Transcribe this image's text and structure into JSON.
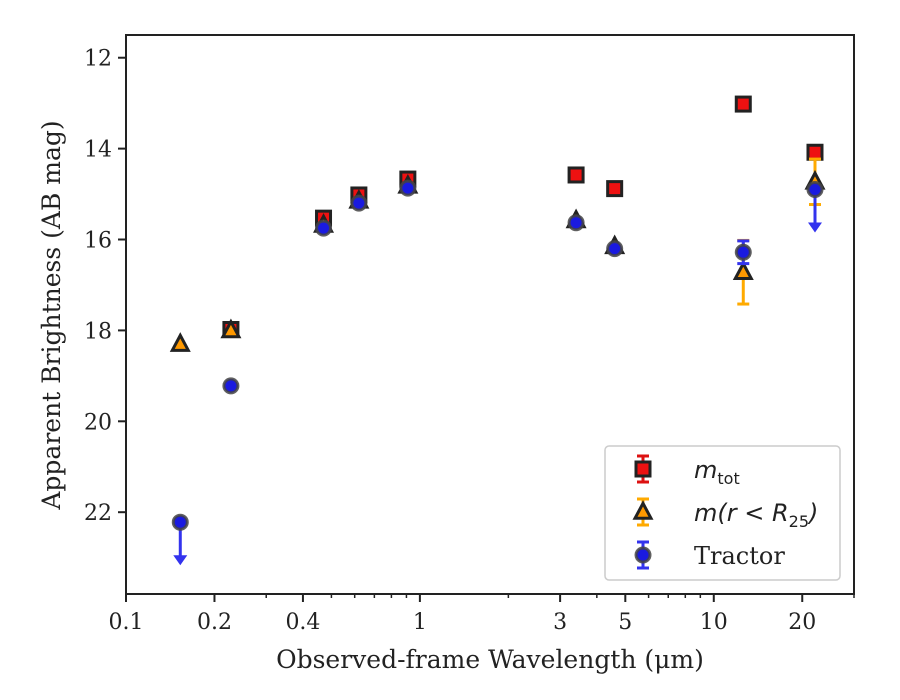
{
  "chart_data": {
    "type": "scatter",
    "title": "",
    "xlabel": "Observed-frame Wavelength (μm)",
    "ylabel": "Apparent Brightness (AB mag)",
    "xscale": "log",
    "xlim": [
      0.1,
      30
    ],
    "ylim": [
      23.8,
      11.5
    ],
    "y_inverted": true,
    "grid": false,
    "legend_position": "lower-right",
    "xticks": [
      {
        "value": 0.1,
        "label": "0.1"
      },
      {
        "value": 0.2,
        "label": "0.2"
      },
      {
        "value": 0.4,
        "label": "0.4"
      },
      {
        "value": 1,
        "label": "1"
      },
      {
        "value": 3,
        "label": "3"
      },
      {
        "value": 5,
        "label": "5"
      },
      {
        "value": 10,
        "label": "10"
      },
      {
        "value": 20,
        "label": "20"
      }
    ],
    "yticks": [
      {
        "value": 12,
        "label": "12"
      },
      {
        "value": 14,
        "label": "14"
      },
      {
        "value": 16,
        "label": "16"
      },
      {
        "value": 18,
        "label": "18"
      },
      {
        "value": 20,
        "label": "20"
      },
      {
        "value": 22,
        "label": "22"
      }
    ],
    "series": [
      {
        "name": "m_tot",
        "legend_main": "m",
        "legend_sub": "tot",
        "marker": "square",
        "fill_color": "#ee1111",
        "edge_color": "#222222",
        "error_color": "#dd1111",
        "points": [
          {
            "x": 0.2275,
            "y": 17.98,
            "err": 0.08
          },
          {
            "x": 0.47,
            "y": 15.53,
            "err": 0.08
          },
          {
            "x": 0.62,
            "y": 15.02,
            "err": 0.08
          },
          {
            "x": 0.91,
            "y": 14.67,
            "err": 0.08
          },
          {
            "x": 3.4,
            "y": 14.58,
            "err": 0.05
          },
          {
            "x": 4.6,
            "y": 14.88,
            "err": 0.05
          },
          {
            "x": 12.6,
            "y": 13.02,
            "err": 0.05
          },
          {
            "x": 22.1,
            "y": 14.08,
            "err": 0.05
          }
        ]
      },
      {
        "name": "m(r < R_25)",
        "legend_main": "m(r < R",
        "legend_sub": "25",
        "legend_tail": ")",
        "marker": "triangle",
        "fill_color": "#ff9900",
        "edge_color": "#222222",
        "error_color": "#ffaa00",
        "points": [
          {
            "x": 0.153,
            "y": 18.3,
            "err": 0.05
          },
          {
            "x": 0.2275,
            "y": 18.0,
            "err": 0.05
          },
          {
            "x": 0.47,
            "y": 15.68,
            "err": 0.05
          },
          {
            "x": 0.62,
            "y": 15.15,
            "err": 0.05
          },
          {
            "x": 0.91,
            "y": 14.82,
            "err": 0.05
          },
          {
            "x": 3.4,
            "y": 15.58,
            "err": 0.05
          },
          {
            "x": 4.6,
            "y": 16.15,
            "err": 0.05
          },
          {
            "x": 12.6,
            "y": 16.72,
            "err": 0.7
          },
          {
            "x": 22.1,
            "y": 14.73,
            "err": 0.5
          }
        ]
      },
      {
        "name": "Tractor",
        "legend_main": "Tractor",
        "marker": "circle",
        "fill_color": "#1a1ae0",
        "edge_color": "#444444",
        "error_color": "#3333ee",
        "points": [
          {
            "x": 0.153,
            "y": 22.22,
            "upper_limit": true
          },
          {
            "x": 0.2275,
            "y": 19.22,
            "err": 0.05
          },
          {
            "x": 0.47,
            "y": 15.75,
            "err": 0.05
          },
          {
            "x": 0.62,
            "y": 15.2,
            "err": 0.05
          },
          {
            "x": 0.91,
            "y": 14.87,
            "err": 0.05
          },
          {
            "x": 3.4,
            "y": 15.63,
            "err": 0.05
          },
          {
            "x": 4.6,
            "y": 16.2,
            "err": 0.05
          },
          {
            "x": 12.6,
            "y": 16.28,
            "err": 0.25
          },
          {
            "x": 22.1,
            "y": 14.9,
            "upper_limit": true
          }
        ]
      }
    ]
  }
}
